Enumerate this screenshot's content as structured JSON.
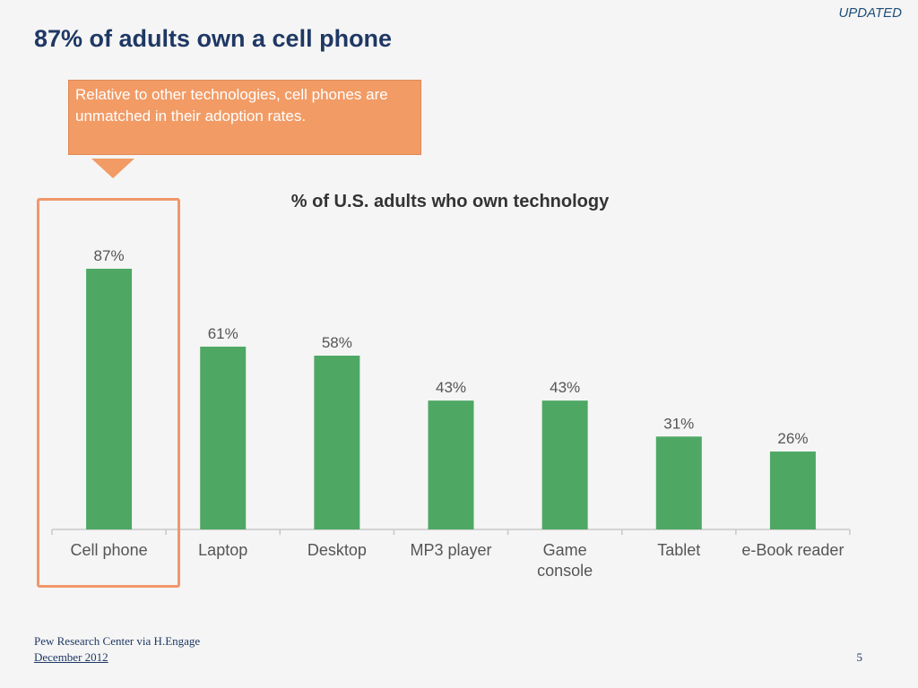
{
  "header": {
    "updated": "UPDATED",
    "title": "87% of adults own a cell phone"
  },
  "callout": {
    "text": "Relative to other technologies, cell phones are unmatched in their adoption rates."
  },
  "footer": {
    "source": "Pew Research Center via H.Engage",
    "date": "December 2012",
    "page": "5"
  },
  "colors": {
    "bar": "#4ea864",
    "highlight": "#f0976a",
    "callout": "#f29b65"
  },
  "chart_data": {
    "type": "bar",
    "title": "% of U.S. adults who own technology",
    "categories": [
      "Cell phone",
      "Laptop",
      "Desktop",
      "MP3 player",
      "Game console",
      "Tablet",
      "e-Book reader"
    ],
    "values": [
      87,
      61,
      58,
      43,
      43,
      31,
      26
    ],
    "data_labels": [
      "87%",
      "61%",
      "58%",
      "43%",
      "43%",
      "31%",
      "26%"
    ],
    "ylim": [
      0,
      100
    ],
    "grid": false,
    "highlighted_category": "Cell phone"
  }
}
